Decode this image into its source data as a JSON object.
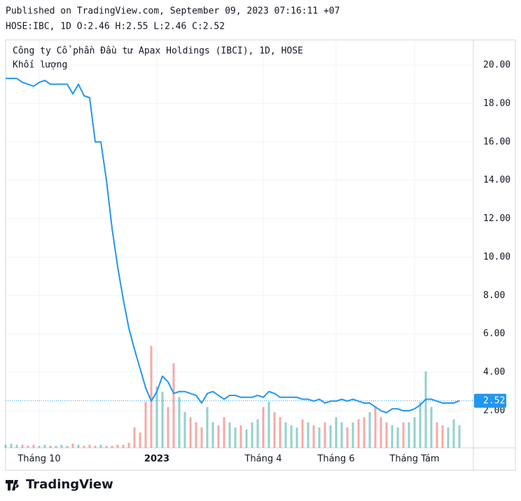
{
  "header": {
    "published": "Published on TradingView.com, September 09, 2023 07:16:11 +07",
    "symbol_line": "HOSE:IBC, 1D O:2.46 H:2.55 L:2.46 C:2.52"
  },
  "chart_data": {
    "type": "line",
    "categories": [
      null,
      null,
      null,
      null,
      null,
      null,
      "Tháng 10",
      null,
      null,
      null,
      null,
      null,
      null,
      null,
      null,
      null,
      null,
      null,
      null,
      null,
      null,
      null,
      null,
      null,
      null,
      null,
      null,
      "2023",
      null,
      null,
      null,
      null,
      null,
      null,
      null,
      null,
      null,
      null,
      null,
      null,
      null,
      null,
      null,
      null,
      null,
      null,
      "Tháng 4",
      null,
      null,
      null,
      null,
      null,
      null,
      null,
      null,
      null,
      null,
      null,
      null,
      "Tháng 6",
      null,
      null,
      null,
      null,
      null,
      null,
      null,
      null,
      null,
      null,
      null,
      null,
      null,
      "Tháng Tám",
      null,
      null,
      null,
      null,
      null,
      null,
      null,
      null
    ],
    "series": [
      {
        "name": "Công ty Cổ phần Đầu tư Apax Holdings (IBCI), 1D, HOSE",
        "color": "#2196f3",
        "values": [
          19.3,
          19.3,
          19.3,
          19.1,
          19.0,
          18.9,
          19.1,
          19.2,
          19.0,
          19.0,
          19.0,
          19.0,
          18.5,
          19.0,
          18.4,
          18.3,
          16.0,
          16.0,
          14.0,
          11.5,
          9.5,
          7.8,
          6.3,
          5.2,
          4.2,
          3.2,
          2.5,
          3.0,
          3.8,
          3.5,
          2.9,
          3.0,
          3.0,
          2.9,
          2.8,
          2.4,
          2.9,
          3.0,
          2.8,
          2.6,
          2.8,
          2.8,
          2.7,
          2.7,
          2.7,
          2.8,
          2.7,
          3.0,
          2.9,
          2.7,
          2.7,
          2.7,
          2.7,
          2.6,
          2.6,
          2.5,
          2.6,
          2.4,
          2.5,
          2.5,
          2.6,
          2.5,
          2.6,
          2.5,
          2.4,
          2.4,
          2.2,
          2.0,
          1.9,
          2.1,
          2.1,
          2.0,
          2.0,
          2.1,
          2.3,
          2.6,
          2.6,
          2.5,
          2.4,
          2.4,
          2.4,
          2.52
        ]
      },
      {
        "name": "Khối lượng",
        "type": "bar",
        "axis": "y2",
        "up_color": "#26a69a",
        "down_color": "#ef5350",
        "values": [
          3,
          4,
          3,
          3,
          2,
          3,
          2,
          3,
          2,
          2,
          3,
          2,
          4,
          3,
          2,
          3,
          2,
          3,
          2,
          2,
          3,
          3,
          5,
          20,
          15,
          45,
          100,
          60,
          55,
          40,
          83,
          50,
          35,
          30,
          25,
          20,
          40,
          25,
          22,
          30,
          25,
          20,
          22,
          18,
          25,
          28,
          40,
          45,
          35,
          30,
          25,
          22,
          20,
          28,
          25,
          22,
          20,
          25,
          22,
          30,
          25,
          20,
          25,
          28,
          30,
          35,
          40,
          30,
          25,
          22,
          20,
          25,
          25,
          30,
          45,
          75,
          40,
          25,
          22,
          20,
          28,
          22
        ]
      }
    ],
    "ylim": [
      0.07,
      21.31
    ],
    "yticks": [
      {
        "value": 2,
        "label": "2.00"
      },
      {
        "value": 4,
        "label": "4.00"
      },
      {
        "value": 6,
        "label": "6.00"
      },
      {
        "value": 8,
        "label": "8.00"
      },
      {
        "value": 10,
        "label": "10.00"
      },
      {
        "value": 12,
        "label": "12.00"
      },
      {
        "value": 14,
        "label": "14.00"
      },
      {
        "value": 16,
        "label": "16.00"
      },
      {
        "value": 18,
        "label": "18.00"
      },
      {
        "value": 20,
        "label": "20.00"
      }
    ],
    "y2lim": [
      0,
      400
    ],
    "last_price": {
      "value": 2.52,
      "label": "2.52"
    },
    "grid": true
  },
  "footer": {
    "brand": "TradingView"
  }
}
